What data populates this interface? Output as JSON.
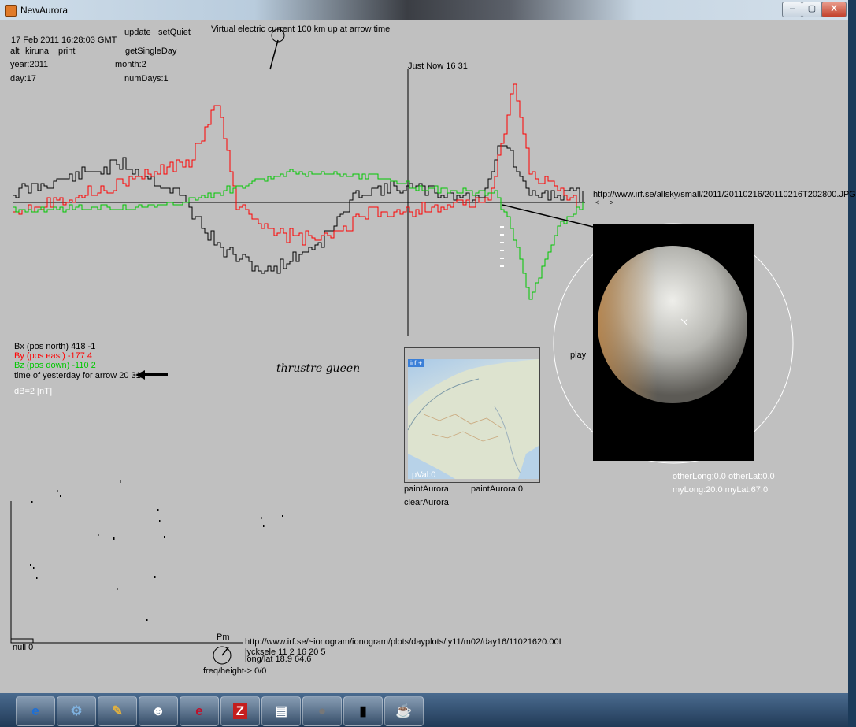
{
  "window": {
    "title": "NewAurora",
    "minimize": "–",
    "maximize": "▢",
    "close": "X"
  },
  "header": {
    "datetime": "17 Feb 2011 16:28:03 GMT",
    "update": "update",
    "setQuiet": "setQuiet",
    "alt": "alt",
    "station": "kiruna",
    "print": "print",
    "getSingleDay": "getSingleDay",
    "year": "year:2011",
    "month": "month:2",
    "day": "day:17",
    "numDays": "numDays:1",
    "virtual_current": "Virtual electric current 100 km up at arrow time",
    "just_now": "Just Now  16 31"
  },
  "legend": {
    "bx": "Bx (pos north) 418  -1",
    "by": "By (pos east) -177  4",
    "bz": "Bz (pos down)  -110  2",
    "arrow_time": "time of yesterday for arrow 20 31",
    "db": "dB=2 [nT]",
    "handwriting": "thrustre  gueen",
    "colors": {
      "bx": "#000000",
      "by": "#ff0000",
      "bz": "#00c800",
      "db": "#ffffff"
    }
  },
  "allsky": {
    "url": "http://www.irf.se/allsky/small/2011/20110216/20110216T202800.JPG",
    "prev": "<",
    "next": ">",
    "play": "play"
  },
  "map": {
    "tag": "irf",
    "tag_plus": "+",
    "pval": "pVal:0",
    "paintAurora": "paintAurora",
    "paintAuroraVal": "paintAurora:0",
    "clearAurora": "clearAurora",
    "otherCoords": "otherLong:0.0 otherLat:0.0",
    "myCoords": "myLong:20.0 myLat:67.0"
  },
  "ionogram": {
    "pm": "Pm",
    "url": "http://www.irf.se/~ionogram/ionogram/plots/dayplots/ly11/m02/day16/11021620.00I",
    "station": "lycksele 11 2 16 20 5",
    "longlat": "long/lat 18.9 64.6",
    "freq": "freq/height-> 0/0",
    "null": "null 0"
  },
  "taskbar": {
    "items": [
      {
        "icon": "ie-icon",
        "glyph": "e"
      },
      {
        "icon": "network-icon",
        "glyph": "⚙"
      },
      {
        "icon": "paint-icon",
        "glyph": "✎"
      },
      {
        "icon": "game-icon",
        "glyph": "☻"
      },
      {
        "icon": "erlang-icon",
        "glyph": "e"
      },
      {
        "icon": "filezilla-icon",
        "glyph": "Z"
      },
      {
        "icon": "files-icon",
        "glyph": "▤"
      },
      {
        "icon": "sphere-icon",
        "glyph": "●"
      },
      {
        "icon": "terminal-icon",
        "glyph": "▮"
      },
      {
        "icon": "java-icon",
        "glyph": "☕"
      }
    ]
  }
}
